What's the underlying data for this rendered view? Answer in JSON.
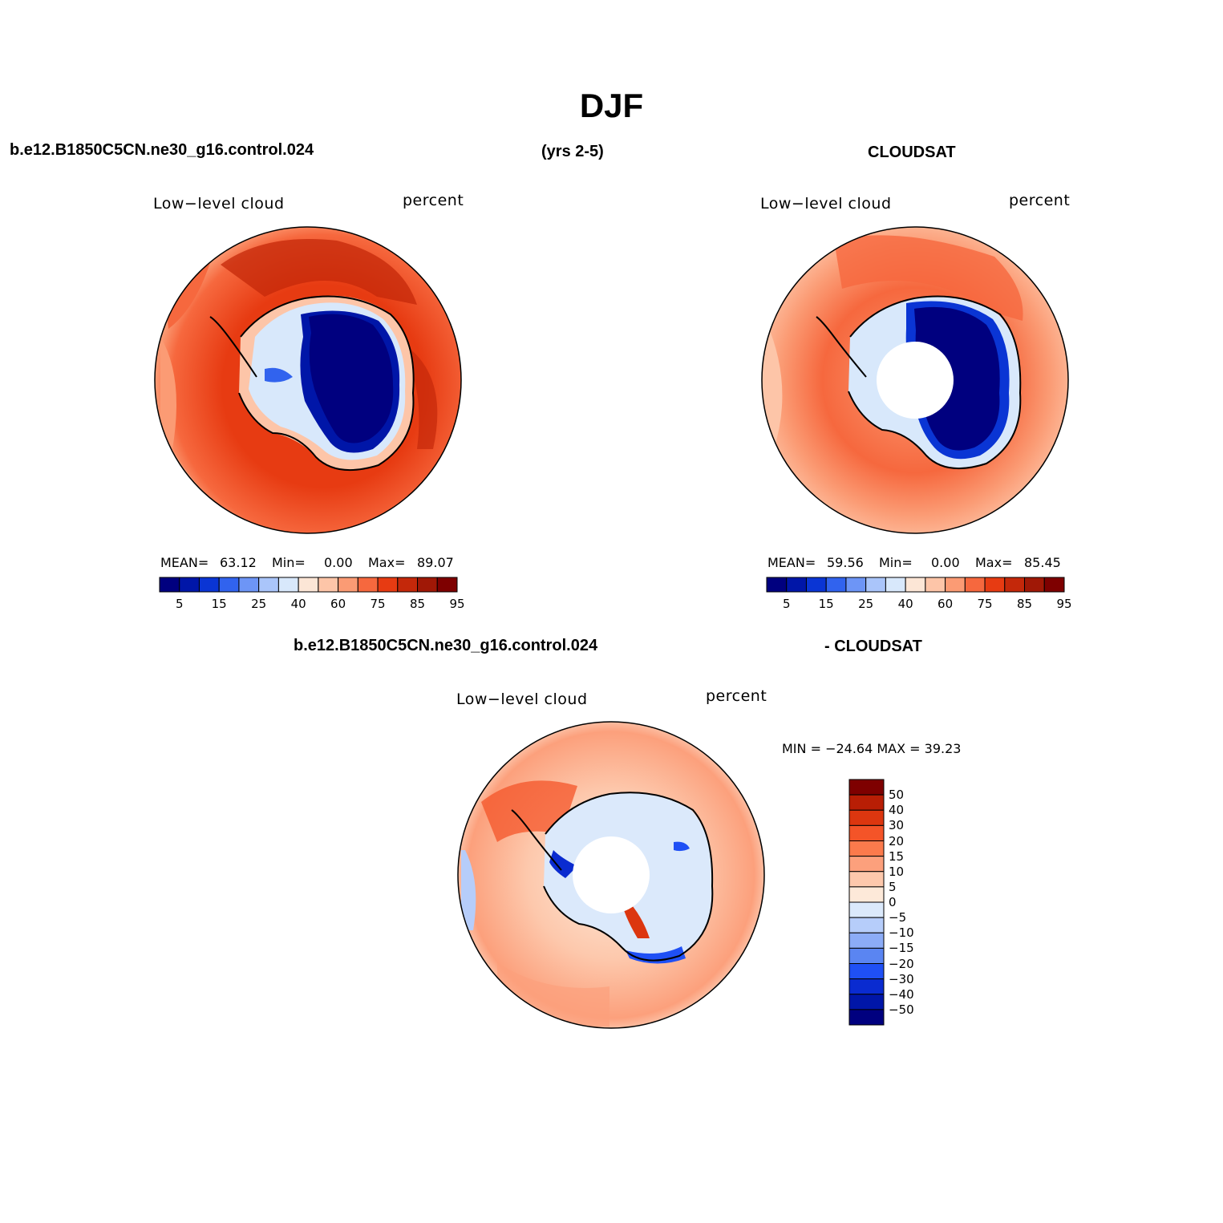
{
  "title": "DJF",
  "header": {
    "case": "b.e12.B1850C5CN.ne30_g16.control.024",
    "years": "(yrs 2-5)",
    "obs": "CLOUDSAT"
  },
  "diff_header": {
    "case": "b.e12.B1850C5CN.ne30_g16.control.024",
    "obs": "- CLOUDSAT"
  },
  "panels": {
    "model": {
      "variable": "Low−level cloud",
      "units": "percent",
      "mean_label": "MEAN=",
      "mean": "63.12",
      "min_label": "Min=",
      "min": "0.00",
      "max_label": "Max=",
      "max": "89.07"
    },
    "obs": {
      "variable": "Low−level cloud",
      "units": "percent",
      "mean_label": "MEAN=",
      "mean": "59.56",
      "min_label": "Min=",
      "min": "0.00",
      "max_label": "Max=",
      "max": "85.45"
    },
    "diff": {
      "variable": "Low−level cloud",
      "units": "percent",
      "minmax_text": "MIN = −24.64 MAX =  39.23"
    }
  },
  "colorbar_abs": {
    "ticks": [
      "5",
      "15",
      "25",
      "40",
      "60",
      "75",
      "85",
      "95"
    ],
    "colors": [
      "#00007f",
      "#0016a8",
      "#0a35d4",
      "#3163ee",
      "#6d95f6",
      "#aac5fa",
      "#d8e8fb",
      "#fce6d6",
      "#fdc5a8",
      "#fb9b74",
      "#f6683e",
      "#e73b12",
      "#c4280a",
      "#a01806",
      "#7e0000"
    ]
  },
  "colorbar_diff": {
    "ticks": [
      "50",
      "40",
      "30",
      "20",
      "15",
      "10",
      "5",
      "0",
      "−5",
      "−10",
      "−15",
      "−20",
      "−30",
      "−40",
      "−50"
    ],
    "colors": [
      "#7e0000",
      "#b81e05",
      "#dc360f",
      "#f45428",
      "#fb7a4c",
      "#fca07c",
      "#fdc8ac",
      "#fde9d9",
      "#dbe9fb",
      "#b6cdfa",
      "#8cacf7",
      "#5a85f2",
      "#1f50f5",
      "#0a2bd0",
      "#0016a8",
      "#00007f"
    ]
  }
}
